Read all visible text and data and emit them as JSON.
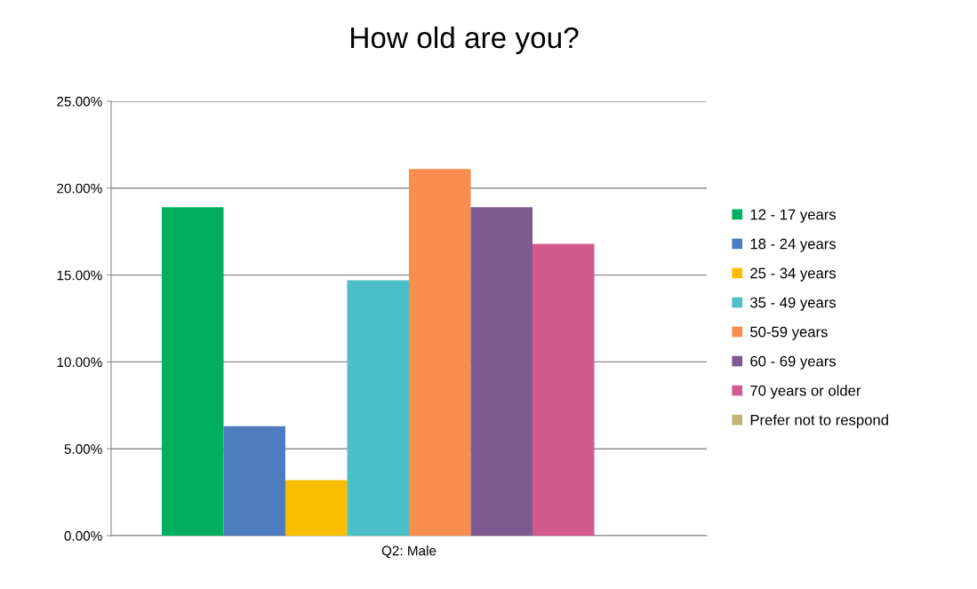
{
  "chart_data": {
    "type": "bar",
    "title": "How old are you?",
    "categories": [
      "Q2: Male"
    ],
    "series": [
      {
        "name": "12 - 17 years",
        "color": "#00b060",
        "values": [
          18.9
        ]
      },
      {
        "name": "18 - 24 years",
        "color": "#4f7bbf",
        "values": [
          6.3
        ]
      },
      {
        "name": "25 - 34 years",
        "color": "#fbbd00",
        "values": [
          3.2
        ]
      },
      {
        "name": "35 - 49 years",
        "color": "#4bc0c8",
        "values": [
          14.7
        ]
      },
      {
        "name": "50-59 years",
        "color": "#f88d4d",
        "values": [
          21.1
        ]
      },
      {
        "name": "60 - 69 years",
        "color": "#7d5a90",
        "values": [
          18.9
        ]
      },
      {
        "name": "70 years or older",
        "color": "#d25a8e",
        "values": [
          16.8
        ]
      },
      {
        "name": "Prefer not to respond",
        "color": "#c4b27a",
        "values": [
          0
        ]
      }
    ],
    "ylim": [
      0,
      25
    ],
    "yticks": [
      {
        "value": 0,
        "label": "0.00%"
      },
      {
        "value": 5,
        "label": "5.00%"
      },
      {
        "value": 10,
        "label": "10.00%"
      },
      {
        "value": 15,
        "label": "15.00%"
      },
      {
        "value": 20,
        "label": "20.00%"
      },
      {
        "value": 25,
        "label": "25.00%"
      }
    ],
    "grid": "y",
    "legend": "right"
  }
}
